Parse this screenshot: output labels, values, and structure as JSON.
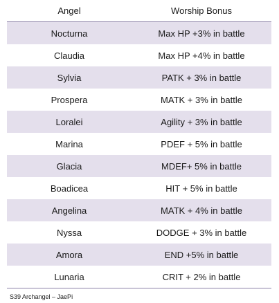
{
  "table": {
    "headers": {
      "angel": "Angel",
      "bonus": "Worship Bonus"
    },
    "rows": [
      {
        "angel": "Nocturna",
        "bonus": "Max HP +3% in battle"
      },
      {
        "angel": "Claudia",
        "bonus": "Max HP +4% in battle"
      },
      {
        "angel": "Sylvia",
        "bonus": "PATK + 3% in battle"
      },
      {
        "angel": "Prospera",
        "bonus": "MATK + 3% in battle"
      },
      {
        "angel": "Loralei",
        "bonus": "Agility + 3% in battle"
      },
      {
        "angel": "Marina",
        "bonus": "PDEF + 5% in battle"
      },
      {
        "angel": "Glacia",
        "bonus": "MDEF+ 5% in battle"
      },
      {
        "angel": "Boadicea",
        "bonus": "HIT + 5% in battle"
      },
      {
        "angel": "Angelina",
        "bonus": "MATK + 4% in battle"
      },
      {
        "angel": "Nyssa",
        "bonus": "DODGE + 3% in battle"
      },
      {
        "angel": "Amora",
        "bonus": "END +5% in battle"
      },
      {
        "angel": "Lunaria",
        "bonus": "CRIT + 2% in battle"
      }
    ]
  },
  "footer": {
    "credit": "S39 Archangel – JaePi"
  },
  "colors": {
    "shaded_row": "#e4dfec",
    "rule": "#8a7fa6"
  }
}
